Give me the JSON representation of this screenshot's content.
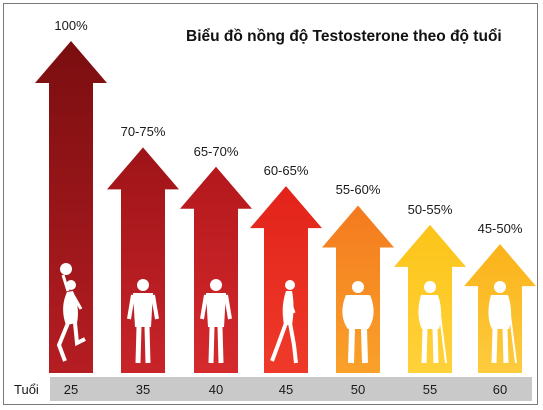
{
  "chart_data": {
    "type": "bar",
    "title": "Biểu đồ nồng độ Testosterone theo độ tuổi",
    "xlabel": "Tuổi",
    "ylabel": "",
    "categories": [
      "25",
      "35",
      "40",
      "45",
      "50",
      "55",
      "60"
    ],
    "value_labels": [
      "100%",
      "70-75%",
      "65-70%",
      "60-65%",
      "55-60%",
      "50-55%",
      "45-50%"
    ],
    "values": [
      100,
      72.5,
      67.5,
      62.5,
      57.5,
      52.5,
      47.5
    ],
    "ylim": [
      0,
      100
    ],
    "grid": false,
    "legend": "none",
    "colors": {
      "arrow_top": [
        "#7a0e10",
        "#9e1418",
        "#b3181c",
        "#e2231a",
        "#f47a1f",
        "#fcc419",
        "#fbb21a"
      ],
      "arrow_bottom": [
        "#b51d22",
        "#c8242a",
        "#d52a2e",
        "#ef3a2a",
        "#f9a12a",
        "#ffd23a",
        "#fdcc3e"
      ],
      "axis_band": "#c9c9c9",
      "figure": "#ffffff"
    },
    "figure_icons": [
      "basketball-player-icon",
      "standing-man-icon",
      "standing-man-icon",
      "walking-man-icon",
      "overweight-man-icon",
      "man-with-cane-icon",
      "elderly-man-with-cane-icon"
    ]
  }
}
